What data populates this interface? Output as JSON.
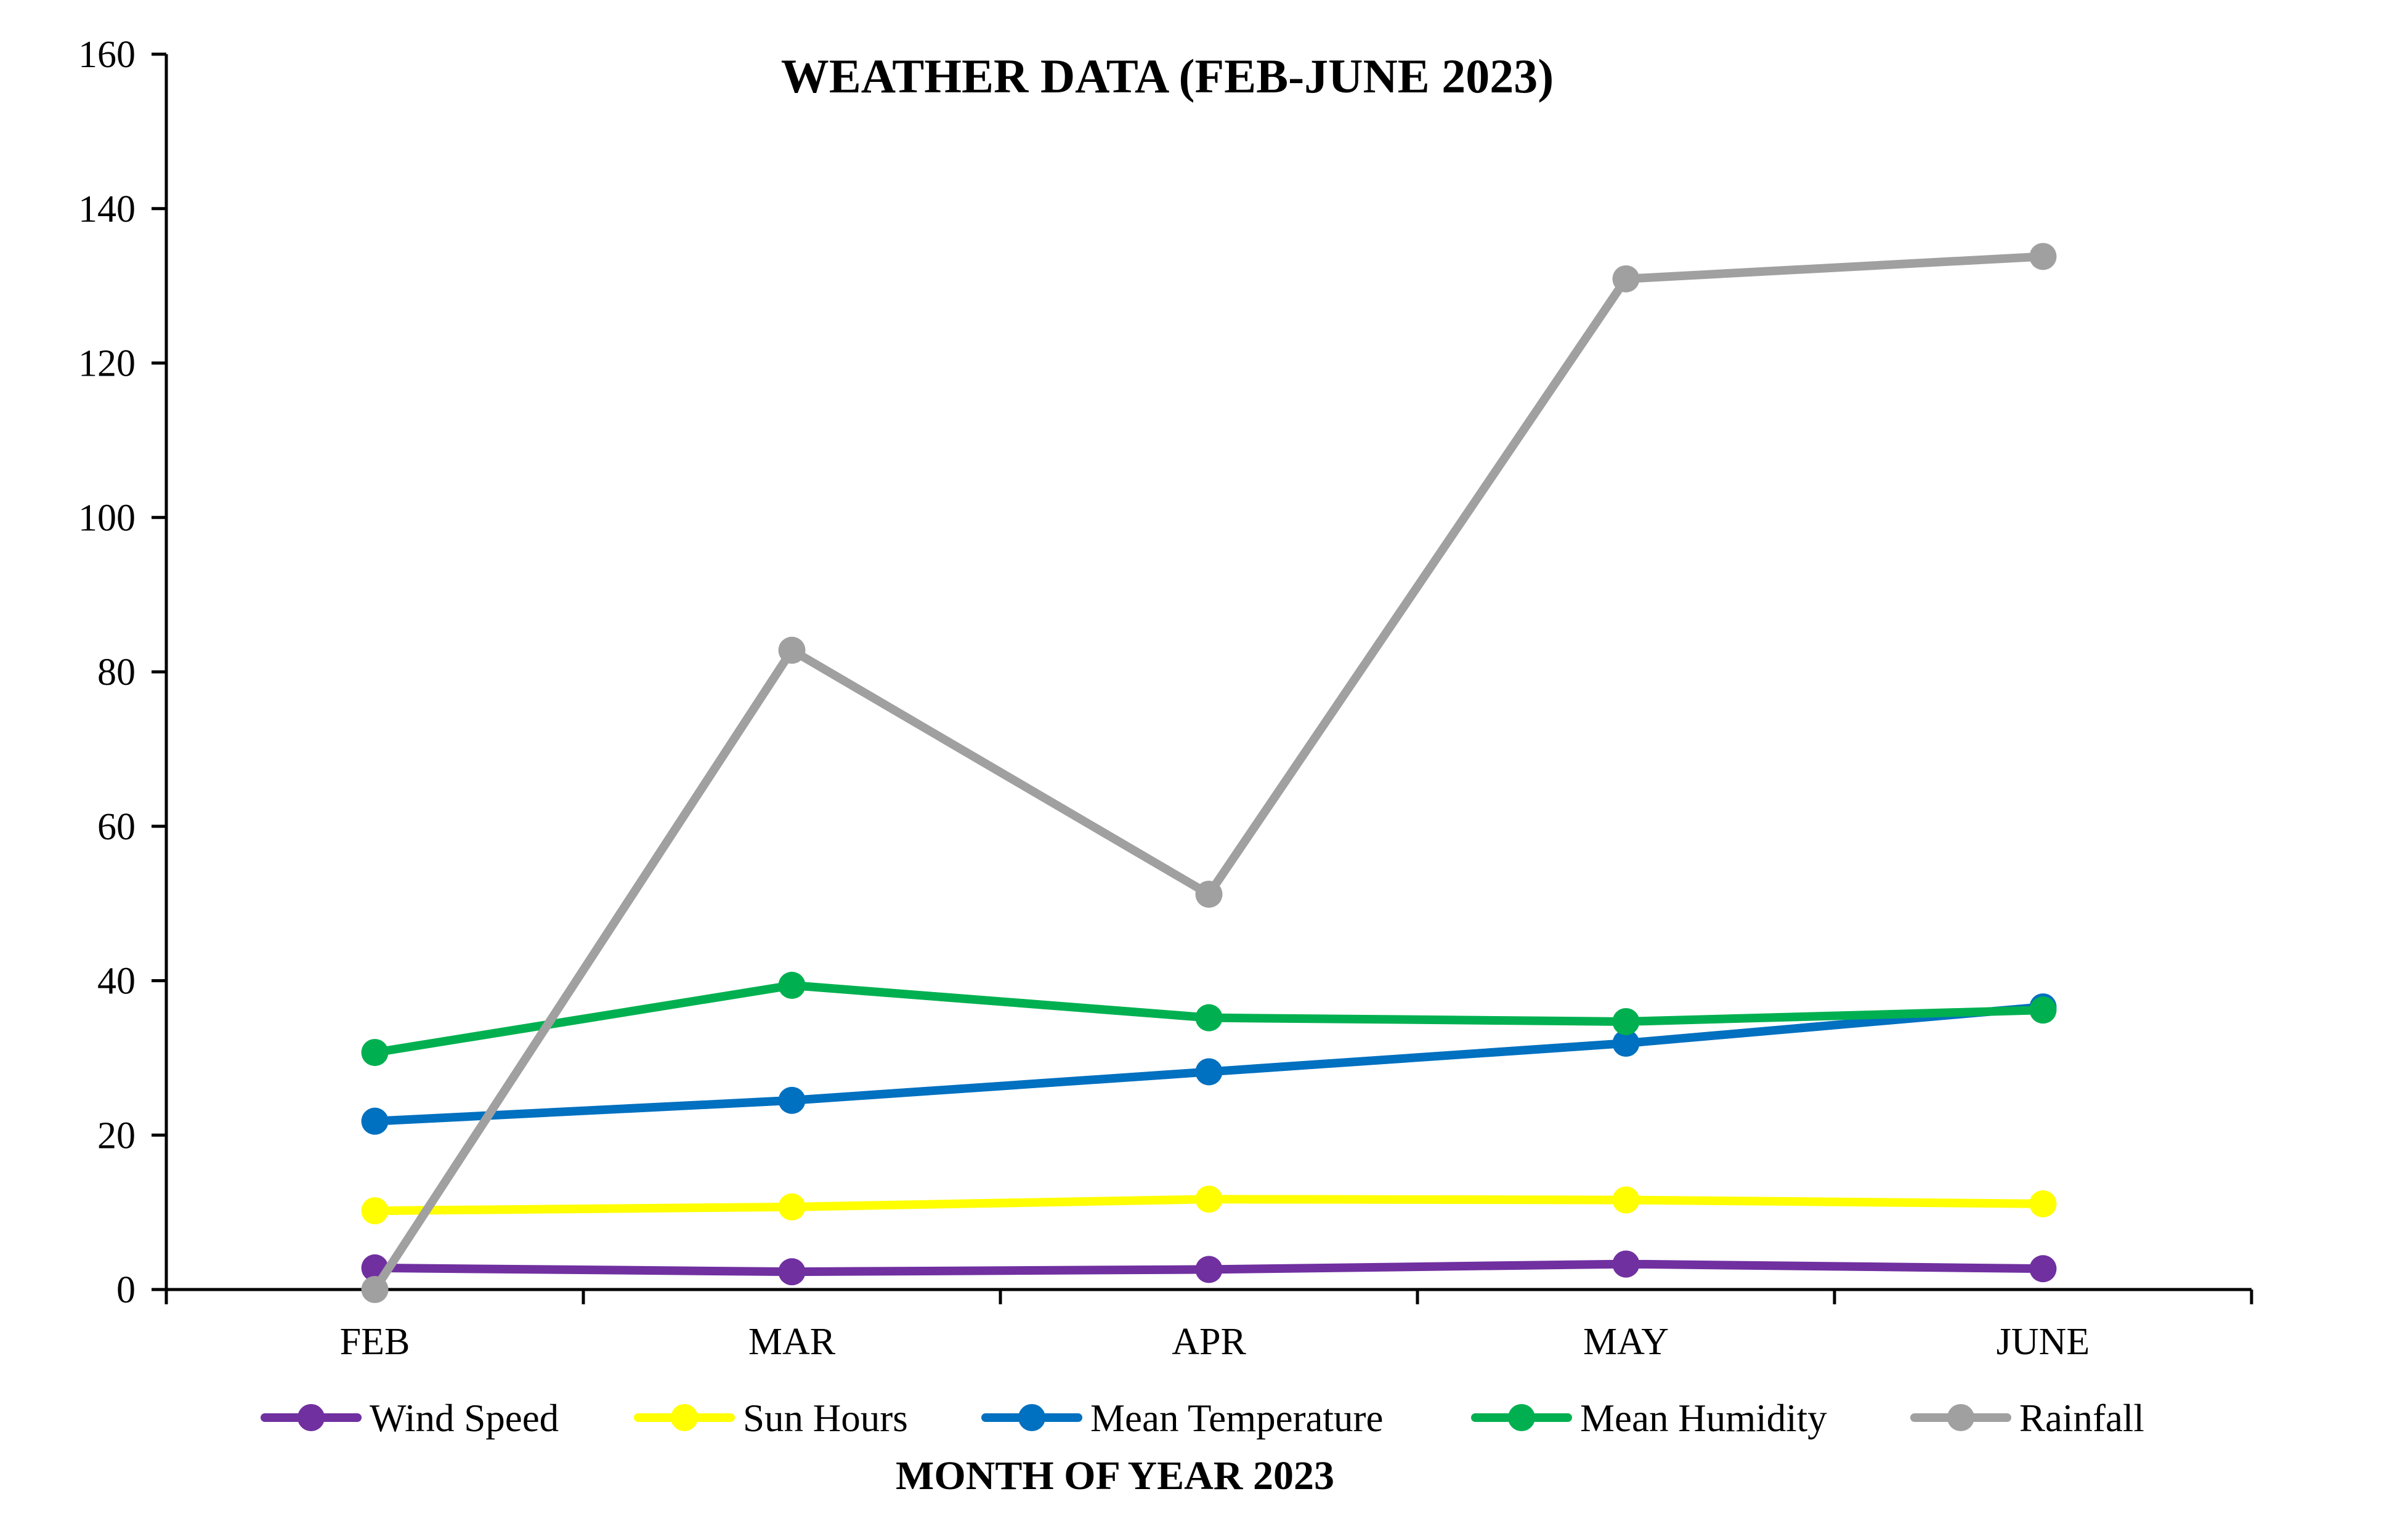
{
  "chart_data": {
    "type": "line",
    "title": "WEATHER DATA (FEB-JUNE 2023)",
    "xlabel": "MONTH OF YEAR 2023",
    "ylabel": "",
    "categories": [
      "FEB",
      "MAR",
      "APR",
      "MAY",
      "JUNE"
    ],
    "ylim": [
      0,
      160
    ],
    "yticks": [
      "0",
      "20",
      "40",
      "60",
      "80",
      "100",
      "120",
      "140",
      "160"
    ],
    "grid": false,
    "legend_position": "bottom",
    "series": [
      {
        "name": "Wind Speed",
        "color": "#7030A0",
        "values": [
          2.8,
          2.3,
          2.6,
          3.3,
          2.7
        ]
      },
      {
        "name": "Sun Hours",
        "color": "#FFFF00",
        "values": [
          10.2,
          10.7,
          11.7,
          11.6,
          11.1
        ]
      },
      {
        "name": "Mean Temperature",
        "color": "#0070C0",
        "values": [
          21.8,
          24.5,
          28.2,
          31.9,
          36.6
        ]
      },
      {
        "name": "Mean Humidity",
        "color": "#00B050",
        "values": [
          30.7,
          39.4,
          35.2,
          34.7,
          36.2
        ]
      },
      {
        "name": "Rainfall",
        "color": "#A0A0A0",
        "values": [
          0,
          82.8,
          51.2,
          130.9,
          133.8
        ]
      }
    ]
  }
}
